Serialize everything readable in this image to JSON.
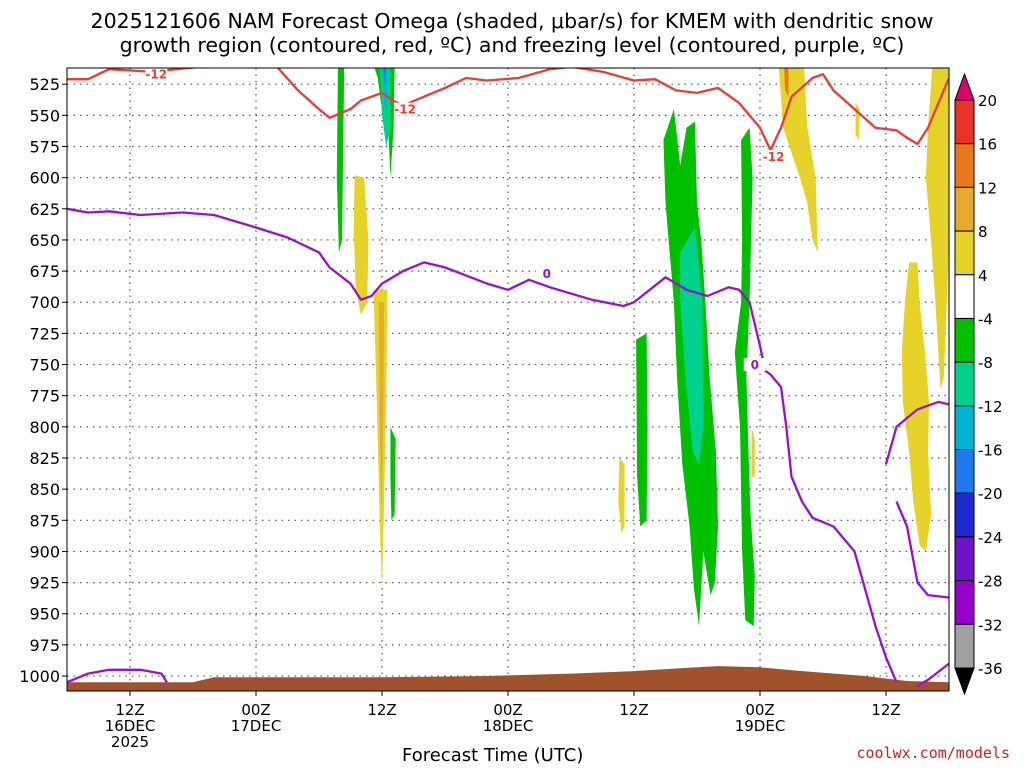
{
  "title_line1": "2025121606 NAM Forecast Omega (shaded, μbar/s) for KMEM with dendritic snow",
  "title_line2": "growth region (contoured, red, ºC) and freezing level (contoured, purple, ºC)",
  "credit": "coolwx.com/models",
  "chart_data": {
    "type": "time-height contour (filled + line)",
    "xlabel": "Forecast Time (UTC)",
    "x_ticks": [
      {
        "t": 6,
        "line1": "12Z",
        "line2": "16DEC",
        "line3": "2025"
      },
      {
        "t": 18,
        "line1": "00Z",
        "line2": "17DEC",
        "line3": ""
      },
      {
        "t": 30,
        "line1": "12Z",
        "line2": "",
        "line3": ""
      },
      {
        "t": 42,
        "line1": "00Z",
        "line2": "18DEC",
        "line3": ""
      },
      {
        "t": 54,
        "line1": "12Z",
        "line2": "",
        "line3": ""
      },
      {
        "t": 66,
        "line1": "00Z",
        "line2": "19DEC",
        "line3": ""
      },
      {
        "t": 78,
        "line1": "12Z",
        "line2": "",
        "line3": ""
      }
    ],
    "x_range_hours": [
      0,
      84
    ],
    "y_unit": "hPa",
    "y_ticks": [
      525,
      550,
      575,
      600,
      625,
      650,
      675,
      700,
      725,
      750,
      775,
      800,
      825,
      850,
      875,
      900,
      925,
      950,
      975,
      1000
    ],
    "y_range": [
      512,
      1012
    ],
    "colorbar": {
      "labels": [
        "20",
        "16",
        "12",
        "8",
        "4",
        "-4",
        "-8",
        "-12",
        "-16",
        "-20",
        "-24",
        "-28",
        "-32",
        "-36"
      ],
      "colors": [
        "#dc006e",
        "#e8322a",
        "#e8781e",
        "#e6aa2e",
        "#e6d228",
        "#ffffff",
        "#00c000",
        "#00d28c",
        "#00b4d2",
        "#1e78f0",
        "#1e28d2",
        "#6e14c8",
        "#9600c8",
        "#a0a0a0",
        "#000000"
      ]
    },
    "contour_labels": {
      "dgz_a": "-12",
      "dgz_b": "-12",
      "dgz_c": "-12",
      "fz_a": "0",
      "fz_b": "0"
    },
    "dgz_boundary_minus12": [
      [
        0,
        521
      ],
      [
        2,
        521
      ],
      [
        4,
        513
      ],
      [
        8,
        515
      ],
      [
        14,
        510
      ],
      [
        20,
        511
      ],
      [
        22,
        530
      ],
      [
        24,
        545
      ],
      [
        25,
        552
      ],
      [
        27,
        545
      ],
      [
        28,
        538
      ],
      [
        30,
        532
      ],
      [
        31,
        538
      ],
      [
        32,
        542
      ],
      [
        34,
        535
      ],
      [
        36,
        528
      ],
      [
        38,
        520
      ],
      [
        40,
        522
      ],
      [
        43,
        520
      ],
      [
        46,
        513
      ],
      [
        48,
        511
      ],
      [
        51,
        515
      ],
      [
        54,
        522
      ],
      [
        56,
        521
      ],
      [
        58,
        530
      ],
      [
        60,
        532
      ],
      [
        62,
        528
      ],
      [
        64,
        540
      ],
      [
        66,
        560
      ],
      [
        67,
        578
      ],
      [
        68,
        560
      ],
      [
        69,
        535
      ],
      [
        71,
        520
      ],
      [
        72,
        517
      ],
      [
        73,
        530
      ],
      [
        75,
        545
      ],
      [
        77,
        560
      ],
      [
        79,
        562
      ],
      [
        80,
        568
      ],
      [
        81,
        573
      ],
      [
        82,
        560
      ],
      [
        84,
        520
      ]
    ],
    "freezing_level_0C": [
      [
        0,
        625
      ],
      [
        2,
        628
      ],
      [
        4,
        627
      ],
      [
        7,
        630
      ],
      [
        11,
        628
      ],
      [
        14,
        630
      ],
      [
        18,
        640
      ],
      [
        21,
        648
      ],
      [
        24,
        660
      ],
      [
        25,
        672
      ],
      [
        27,
        685
      ],
      [
        28,
        698
      ],
      [
        29,
        695
      ],
      [
        30,
        685
      ],
      [
        32,
        675
      ],
      [
        34,
        668
      ],
      [
        36,
        672
      ],
      [
        40,
        685
      ],
      [
        42,
        690
      ],
      [
        44,
        682
      ],
      [
        46,
        688
      ],
      [
        50,
        698
      ],
      [
        53,
        703
      ],
      [
        54,
        700
      ],
      [
        57,
        680
      ],
      [
        59,
        690
      ],
      [
        61,
        695
      ],
      [
        63,
        688
      ],
      [
        64,
        690
      ],
      [
        65,
        700
      ],
      [
        66,
        735
      ],
      [
        66.5,
        755
      ],
      [
        67,
        758
      ],
      [
        68,
        768
      ],
      [
        68.5,
        800
      ],
      [
        69,
        840
      ],
      [
        70,
        860
      ],
      [
        71,
        873
      ],
      [
        73,
        880
      ],
      [
        75,
        900
      ],
      [
        76,
        930
      ],
      [
        77,
        960
      ],
      [
        78,
        985
      ],
      [
        79,
        1005
      ]
    ],
    "freezing_level_0C_lower": [
      [
        0,
        1005
      ],
      [
        2,
        998
      ],
      [
        4,
        995
      ],
      [
        7,
        995
      ],
      [
        9,
        998
      ],
      [
        9.5,
        1005
      ]
    ],
    "freezing_level_0C_right": [
      [
        78,
        830
      ],
      [
        79,
        800
      ],
      [
        81,
        786
      ],
      [
        83,
        780
      ],
      [
        84,
        782
      ]
    ],
    "freezing_level_0C_bottomright": [
      [
        81,
        1008
      ],
      [
        82,
        1003
      ],
      [
        84,
        990
      ]
    ],
    "freezing_level_0C_tail": [
      [
        79,
        860
      ],
      [
        80,
        880
      ],
      [
        81,
        925
      ],
      [
        82,
        935
      ],
      [
        84,
        937
      ]
    ]
  }
}
